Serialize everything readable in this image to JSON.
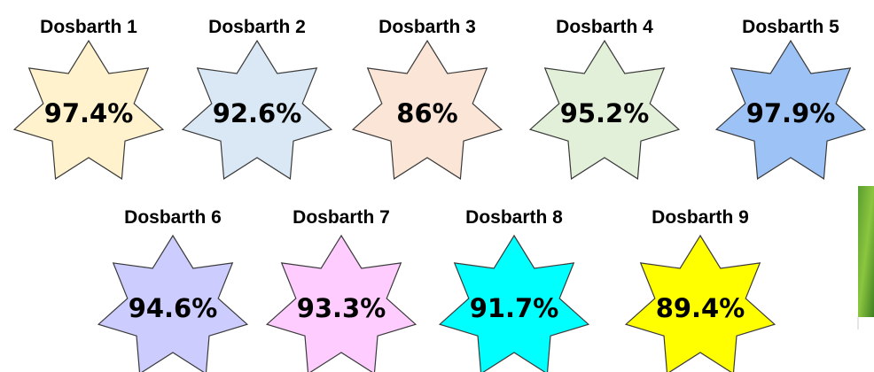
{
  "items": [
    {
      "label": "Dosbarth 1",
      "value": "97.4%",
      "color": "#fff2cc"
    },
    {
      "label": "Dosbarth 2",
      "value": "92.6%",
      "color": "#dae8f5"
    },
    {
      "label": "Dosbarth 3",
      "value": "86%",
      "color": "#fbe5d6"
    },
    {
      "label": "Dosbarth 4",
      "value": "95.2%",
      "color": "#e2f0d9"
    },
    {
      "label": "Dosbarth 5",
      "value": "97.9%",
      "color": "#9dc3f6"
    },
    {
      "label": "Dosbarth 6",
      "value": "94.6%",
      "color": "#ccccff"
    },
    {
      "label": "Dosbarth 7",
      "value": "93.3%",
      "color": "#ffccff"
    },
    {
      "label": "Dosbarth 8",
      "value": "91.7%",
      "color": "#00ffff"
    },
    {
      "label": "Dosbarth 9",
      "value": "89.4%",
      "color": "#ffff00"
    }
  ]
}
